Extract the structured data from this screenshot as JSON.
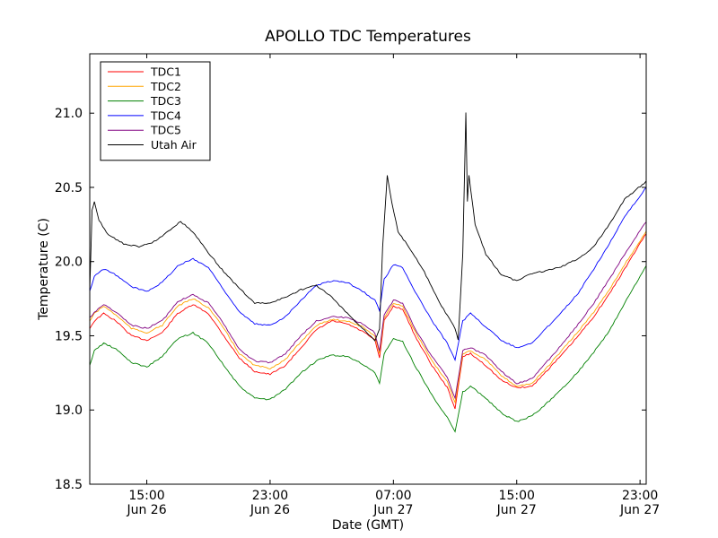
{
  "chart_data": {
    "type": "line",
    "title": "APOLLO TDC Temperatures",
    "xlabel": "Date (GMT)",
    "ylabel": "Temperature (C)",
    "x_unit": "hours since Jun 26 00:00 GMT",
    "xlim": [
      11.3,
      47.4
    ],
    "ylim": [
      18.5,
      21.4
    ],
    "yticks": [
      18.5,
      19.0,
      19.5,
      20.0,
      20.5,
      21.0
    ],
    "ytick_labels": [
      "18.5",
      "19.0",
      "19.5",
      "20.0",
      "20.5",
      "21.0"
    ],
    "xticks": [
      {
        "value": 15,
        "time": "15:00",
        "date": "Jun 26"
      },
      {
        "value": 23,
        "time": "23:00",
        "date": "Jun 26"
      },
      {
        "value": 31,
        "time": "07:00",
        "date": "Jun 27"
      },
      {
        "value": 39,
        "time": "15:00",
        "date": "Jun 27"
      },
      {
        "value": 47,
        "time": "23:00",
        "date": "Jun 27"
      }
    ],
    "legend_position": "top-left",
    "series": [
      {
        "name": "TDC1",
        "color": "#ff0000",
        "points": [
          [
            11.3,
            19.55
          ],
          [
            11.6,
            19.6
          ],
          [
            12.2,
            19.65
          ],
          [
            13,
            19.6
          ],
          [
            14,
            19.5
          ],
          [
            15,
            19.47
          ],
          [
            16,
            19.52
          ],
          [
            17,
            19.65
          ],
          [
            18,
            19.71
          ],
          [
            19,
            19.65
          ],
          [
            20,
            19.5
          ],
          [
            21,
            19.35
          ],
          [
            22,
            19.26
          ],
          [
            23,
            19.24
          ],
          [
            24,
            19.3
          ],
          [
            25,
            19.42
          ],
          [
            26,
            19.54
          ],
          [
            27,
            19.6
          ],
          [
            28,
            19.58
          ],
          [
            29,
            19.53
          ],
          [
            29.8,
            19.47
          ],
          [
            30.1,
            19.35
          ],
          [
            30.4,
            19.6
          ],
          [
            31,
            19.7
          ],
          [
            31.6,
            19.68
          ],
          [
            32.4,
            19.5
          ],
          [
            33.5,
            19.3
          ],
          [
            34.5,
            19.15
          ],
          [
            35,
            19.01
          ],
          [
            35.5,
            19.36
          ],
          [
            36,
            19.38
          ],
          [
            37,
            19.3
          ],
          [
            38,
            19.2
          ],
          [
            39,
            19.15
          ],
          [
            40,
            19.16
          ],
          [
            41,
            19.27
          ],
          [
            42,
            19.38
          ],
          [
            43,
            19.5
          ],
          [
            44,
            19.63
          ],
          [
            45,
            19.78
          ],
          [
            46,
            19.95
          ],
          [
            47.4,
            20.19
          ]
        ]
      },
      {
        "name": "TDC2",
        "color": "#ffa500",
        "points": [
          [
            11.3,
            19.6
          ],
          [
            11.6,
            19.65
          ],
          [
            12.2,
            19.7
          ],
          [
            13,
            19.64
          ],
          [
            14,
            19.55
          ],
          [
            15,
            19.52
          ],
          [
            16,
            19.57
          ],
          [
            17,
            19.7
          ],
          [
            18,
            19.75
          ],
          [
            19,
            19.69
          ],
          [
            20,
            19.55
          ],
          [
            21,
            19.38
          ],
          [
            22,
            19.3
          ],
          [
            23,
            19.28
          ],
          [
            24,
            19.34
          ],
          [
            25,
            19.46
          ],
          [
            26,
            19.57
          ],
          [
            27,
            19.61
          ],
          [
            28,
            19.6
          ],
          [
            29,
            19.56
          ],
          [
            29.8,
            19.5
          ],
          [
            30.1,
            19.38
          ],
          [
            30.4,
            19.62
          ],
          [
            31,
            19.72
          ],
          [
            31.6,
            19.7
          ],
          [
            32.4,
            19.53
          ],
          [
            33.5,
            19.33
          ],
          [
            34.5,
            19.19
          ],
          [
            35,
            19.05
          ],
          [
            35.5,
            19.38
          ],
          [
            36,
            19.4
          ],
          [
            37,
            19.34
          ],
          [
            38,
            19.23
          ],
          [
            39,
            19.16
          ],
          [
            40,
            19.18
          ],
          [
            41,
            19.29
          ],
          [
            42,
            19.41
          ],
          [
            43,
            19.53
          ],
          [
            44,
            19.66
          ],
          [
            45,
            19.81
          ],
          [
            46,
            19.98
          ],
          [
            47.4,
            20.2
          ]
        ]
      },
      {
        "name": "TDC3",
        "color": "#008000",
        "points": [
          [
            11.3,
            19.3
          ],
          [
            11.6,
            19.4
          ],
          [
            12.2,
            19.45
          ],
          [
            13,
            19.41
          ],
          [
            14,
            19.32
          ],
          [
            15,
            19.29
          ],
          [
            16,
            19.36
          ],
          [
            17,
            19.48
          ],
          [
            18,
            19.52
          ],
          [
            19,
            19.45
          ],
          [
            20,
            19.3
          ],
          [
            21,
            19.16
          ],
          [
            22,
            19.08
          ],
          [
            23,
            19.07
          ],
          [
            24,
            19.14
          ],
          [
            25,
            19.25
          ],
          [
            26,
            19.33
          ],
          [
            27,
            19.37
          ],
          [
            28,
            19.36
          ],
          [
            29,
            19.31
          ],
          [
            29.8,
            19.25
          ],
          [
            30.1,
            19.18
          ],
          [
            30.4,
            19.38
          ],
          [
            31,
            19.48
          ],
          [
            31.6,
            19.46
          ],
          [
            32.4,
            19.3
          ],
          [
            33.5,
            19.1
          ],
          [
            34.5,
            18.95
          ],
          [
            35,
            18.85
          ],
          [
            35.5,
            19.12
          ],
          [
            36,
            19.16
          ],
          [
            37,
            19.08
          ],
          [
            38,
            18.98
          ],
          [
            39,
            18.92
          ],
          [
            40,
            18.96
          ],
          [
            41,
            19.05
          ],
          [
            42,
            19.15
          ],
          [
            43,
            19.26
          ],
          [
            44,
            19.39
          ],
          [
            45,
            19.53
          ],
          [
            46,
            19.72
          ],
          [
            47.4,
            19.97
          ]
        ]
      },
      {
        "name": "TDC4",
        "color": "#0000ff",
        "points": [
          [
            11.3,
            19.8
          ],
          [
            11.6,
            19.9
          ],
          [
            12.2,
            19.95
          ],
          [
            13,
            19.91
          ],
          [
            14,
            19.83
          ],
          [
            15,
            19.8
          ],
          [
            16,
            19.86
          ],
          [
            17,
            19.97
          ],
          [
            18,
            20.02
          ],
          [
            19,
            19.96
          ],
          [
            20,
            19.81
          ],
          [
            21,
            19.66
          ],
          [
            22,
            19.58
          ],
          [
            23,
            19.57
          ],
          [
            24,
            19.63
          ],
          [
            25,
            19.74
          ],
          [
            26,
            19.84
          ],
          [
            27,
            19.87
          ],
          [
            28,
            19.86
          ],
          [
            29,
            19.8
          ],
          [
            29.8,
            19.74
          ],
          [
            30.1,
            19.67
          ],
          [
            30.4,
            19.88
          ],
          [
            31,
            19.98
          ],
          [
            31.6,
            19.96
          ],
          [
            32.4,
            19.8
          ],
          [
            33.5,
            19.6
          ],
          [
            34.5,
            19.45
          ],
          [
            35,
            19.34
          ],
          [
            35.5,
            19.6
          ],
          [
            36,
            19.65
          ],
          [
            37,
            19.56
          ],
          [
            38,
            19.47
          ],
          [
            39,
            19.42
          ],
          [
            40,
            19.45
          ],
          [
            41,
            19.56
          ],
          [
            42,
            19.67
          ],
          [
            43,
            19.79
          ],
          [
            44,
            19.95
          ],
          [
            45,
            20.12
          ],
          [
            46,
            20.3
          ],
          [
            47.4,
            20.5
          ]
        ]
      },
      {
        "name": "TDC5",
        "color": "#800080",
        "points": [
          [
            11.3,
            19.62
          ],
          [
            11.6,
            19.66
          ],
          [
            12.2,
            19.71
          ],
          [
            13,
            19.66
          ],
          [
            14,
            19.57
          ],
          [
            15,
            19.55
          ],
          [
            16,
            19.6
          ],
          [
            17,
            19.73
          ],
          [
            18,
            19.78
          ],
          [
            19,
            19.72
          ],
          [
            20,
            19.58
          ],
          [
            21,
            19.41
          ],
          [
            22,
            19.33
          ],
          [
            23,
            19.32
          ],
          [
            24,
            19.38
          ],
          [
            25,
            19.5
          ],
          [
            26,
            19.6
          ],
          [
            27,
            19.63
          ],
          [
            28,
            19.62
          ],
          [
            29,
            19.58
          ],
          [
            29.8,
            19.52
          ],
          [
            30.1,
            19.4
          ],
          [
            30.4,
            19.64
          ],
          [
            31,
            19.74
          ],
          [
            31.6,
            19.72
          ],
          [
            32.4,
            19.55
          ],
          [
            33.5,
            19.36
          ],
          [
            34.5,
            19.22
          ],
          [
            35,
            19.08
          ],
          [
            35.5,
            19.4
          ],
          [
            36,
            19.42
          ],
          [
            37,
            19.37
          ],
          [
            38,
            19.26
          ],
          [
            39,
            19.18
          ],
          [
            40,
            19.21
          ],
          [
            41,
            19.33
          ],
          [
            42,
            19.45
          ],
          [
            43,
            19.58
          ],
          [
            44,
            19.72
          ],
          [
            45,
            19.88
          ],
          [
            46,
            20.05
          ],
          [
            47.4,
            20.27
          ]
        ]
      },
      {
        "name": "Utah Air",
        "color": "#000000",
        "points": [
          [
            11.3,
            19.8
          ],
          [
            11.45,
            20.35
          ],
          [
            11.6,
            20.4
          ],
          [
            11.9,
            20.28
          ],
          [
            12.5,
            20.18
          ],
          [
            13.5,
            20.12
          ],
          [
            14.5,
            20.1
          ],
          [
            15.2,
            20.12
          ],
          [
            16,
            20.17
          ],
          [
            16.8,
            20.24
          ],
          [
            17.2,
            20.27
          ],
          [
            18,
            20.2
          ],
          [
            19,
            20.06
          ],
          [
            20,
            19.93
          ],
          [
            21,
            19.82
          ],
          [
            22,
            19.72
          ],
          [
            23,
            19.72
          ],
          [
            24,
            19.76
          ],
          [
            25,
            19.81
          ],
          [
            26,
            19.84
          ],
          [
            27,
            19.76
          ],
          [
            28,
            19.65
          ],
          [
            29,
            19.55
          ],
          [
            29.8,
            19.47
          ],
          [
            30.1,
            19.55
          ],
          [
            30.3,
            20.1
          ],
          [
            30.6,
            20.58
          ],
          [
            30.9,
            20.4
          ],
          [
            31.3,
            20.2
          ],
          [
            32,
            20.1
          ],
          [
            33,
            19.93
          ],
          [
            34,
            19.72
          ],
          [
            35,
            19.55
          ],
          [
            35.2,
            19.47
          ],
          [
            35.5,
            20.05
          ],
          [
            35.7,
            21.0
          ],
          [
            35.8,
            20.4
          ],
          [
            35.9,
            20.58
          ],
          [
            36.3,
            20.25
          ],
          [
            37,
            20.05
          ],
          [
            38,
            19.91
          ],
          [
            39,
            19.87
          ],
          [
            40,
            19.92
          ],
          [
            41,
            19.94
          ],
          [
            42,
            19.97
          ],
          [
            43,
            20.02
          ],
          [
            44,
            20.1
          ],
          [
            45,
            20.25
          ],
          [
            46,
            20.42
          ],
          [
            47.4,
            20.54
          ]
        ]
      }
    ]
  }
}
